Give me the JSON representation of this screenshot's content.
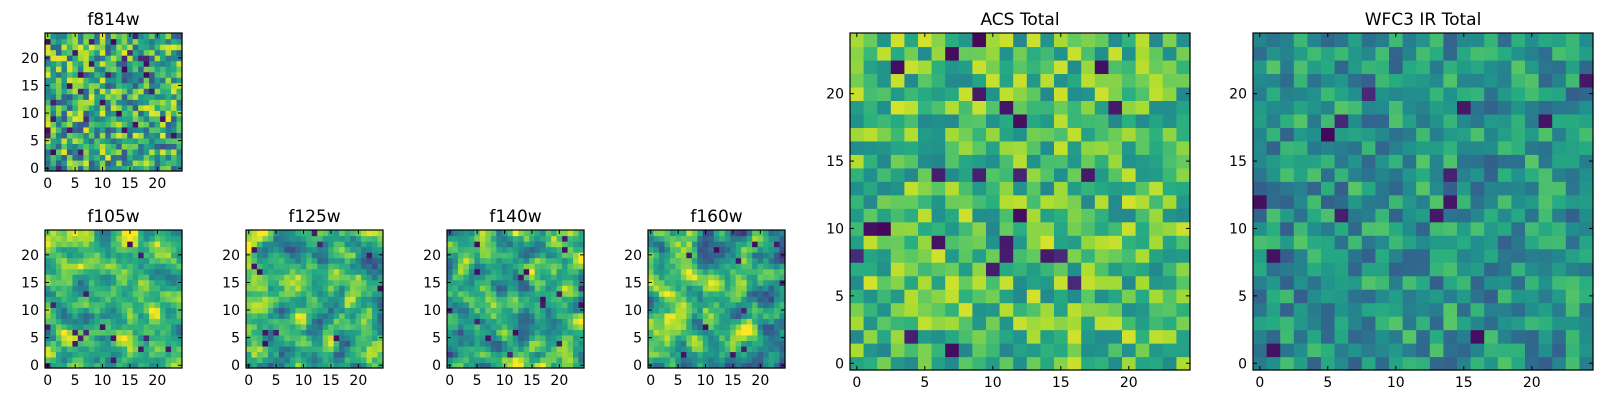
{
  "chart_data": [
    {
      "type": "heatmap",
      "title": "f814w",
      "grid": [
        25,
        25
      ],
      "colormap": "viridis",
      "xlim": [
        0,
        24
      ],
      "ylim": [
        0,
        24
      ],
      "xticks": [
        "0",
        "5",
        "10",
        "15",
        "20"
      ],
      "yticks": [
        "0",
        "5",
        "10",
        "15",
        "20"
      ],
      "seed": 11,
      "bias": 0.62,
      "spread": 0.35,
      "smooth": 0,
      "darkFrac": 0.06
    },
    {
      "type": "heatmap",
      "title": "f105w",
      "grid": [
        25,
        25
      ],
      "colormap": "viridis",
      "xlim": [
        0,
        24
      ],
      "ylim": [
        0,
        24
      ],
      "xticks": [
        "0",
        "5",
        "10",
        "15",
        "20"
      ],
      "yticks": [
        "0",
        "5",
        "10",
        "15",
        "20"
      ],
      "seed": 23,
      "bias": 0.68,
      "spread": 0.32,
      "smooth": 1,
      "darkFrac": 0.02
    },
    {
      "type": "heatmap",
      "title": "f125w",
      "grid": [
        25,
        25
      ],
      "colormap": "viridis",
      "xlim": [
        0,
        24
      ],
      "ylim": [
        0,
        24
      ],
      "xticks": [
        "0",
        "5",
        "10",
        "15",
        "20"
      ],
      "yticks": [
        "0",
        "5",
        "10",
        "15",
        "20"
      ],
      "seed": 37,
      "bias": 0.63,
      "spread": 0.36,
      "smooth": 1,
      "darkFrac": 0.02
    },
    {
      "type": "heatmap",
      "title": "f140w",
      "grid": [
        25,
        25
      ],
      "colormap": "viridis",
      "xlim": [
        0,
        24
      ],
      "ylim": [
        0,
        24
      ],
      "xticks": [
        "0",
        "5",
        "10",
        "15",
        "20"
      ],
      "yticks": [
        "0",
        "5",
        "10",
        "15",
        "20"
      ],
      "seed": 41,
      "bias": 0.62,
      "spread": 0.36,
      "smooth": 1,
      "darkFrac": 0.02
    },
    {
      "type": "heatmap",
      "title": "f160w",
      "grid": [
        25,
        25
      ],
      "colormap": "viridis",
      "xlim": [
        0,
        24
      ],
      "ylim": [
        0,
        24
      ],
      "xticks": [
        "0",
        "5",
        "10",
        "15",
        "20"
      ],
      "yticks": [
        "0",
        "5",
        "10",
        "15",
        "20"
      ],
      "seed": 53,
      "bias": 0.63,
      "spread": 0.36,
      "smooth": 1,
      "darkFrac": 0.02
    },
    {
      "type": "heatmap",
      "title": "ACS Total",
      "grid": [
        25,
        25
      ],
      "colormap": "viridis",
      "xlim": [
        0,
        24
      ],
      "ylim": [
        0,
        24
      ],
      "xticks": [
        "0",
        "5",
        "10",
        "15",
        "20"
      ],
      "yticks": [
        "0",
        "5",
        "10",
        "15",
        "20"
      ],
      "seed": 67,
      "bias": 0.7,
      "spread": 0.24,
      "smooth": 0,
      "darkFrac": 0.03
    },
    {
      "type": "heatmap",
      "title": "WFC3 IR Total",
      "grid": [
        25,
        25
      ],
      "colormap": "viridis",
      "xlim": [
        0,
        24
      ],
      "ylim": [
        0,
        24
      ],
      "xticks": [
        "0",
        "5",
        "10",
        "15",
        "20"
      ],
      "yticks": [
        "0",
        "5",
        "10",
        "15",
        "20"
      ],
      "seed": 79,
      "bias": 0.52,
      "spread": 0.22,
      "smooth": 0,
      "darkFrac": 0.03
    }
  ],
  "colors": {
    "viridis_stops": [
      "#440154",
      "#472c7a",
      "#3b518b",
      "#2c718e",
      "#21908d",
      "#27ad81",
      "#5cc863",
      "#aadc32",
      "#fde725"
    ]
  }
}
